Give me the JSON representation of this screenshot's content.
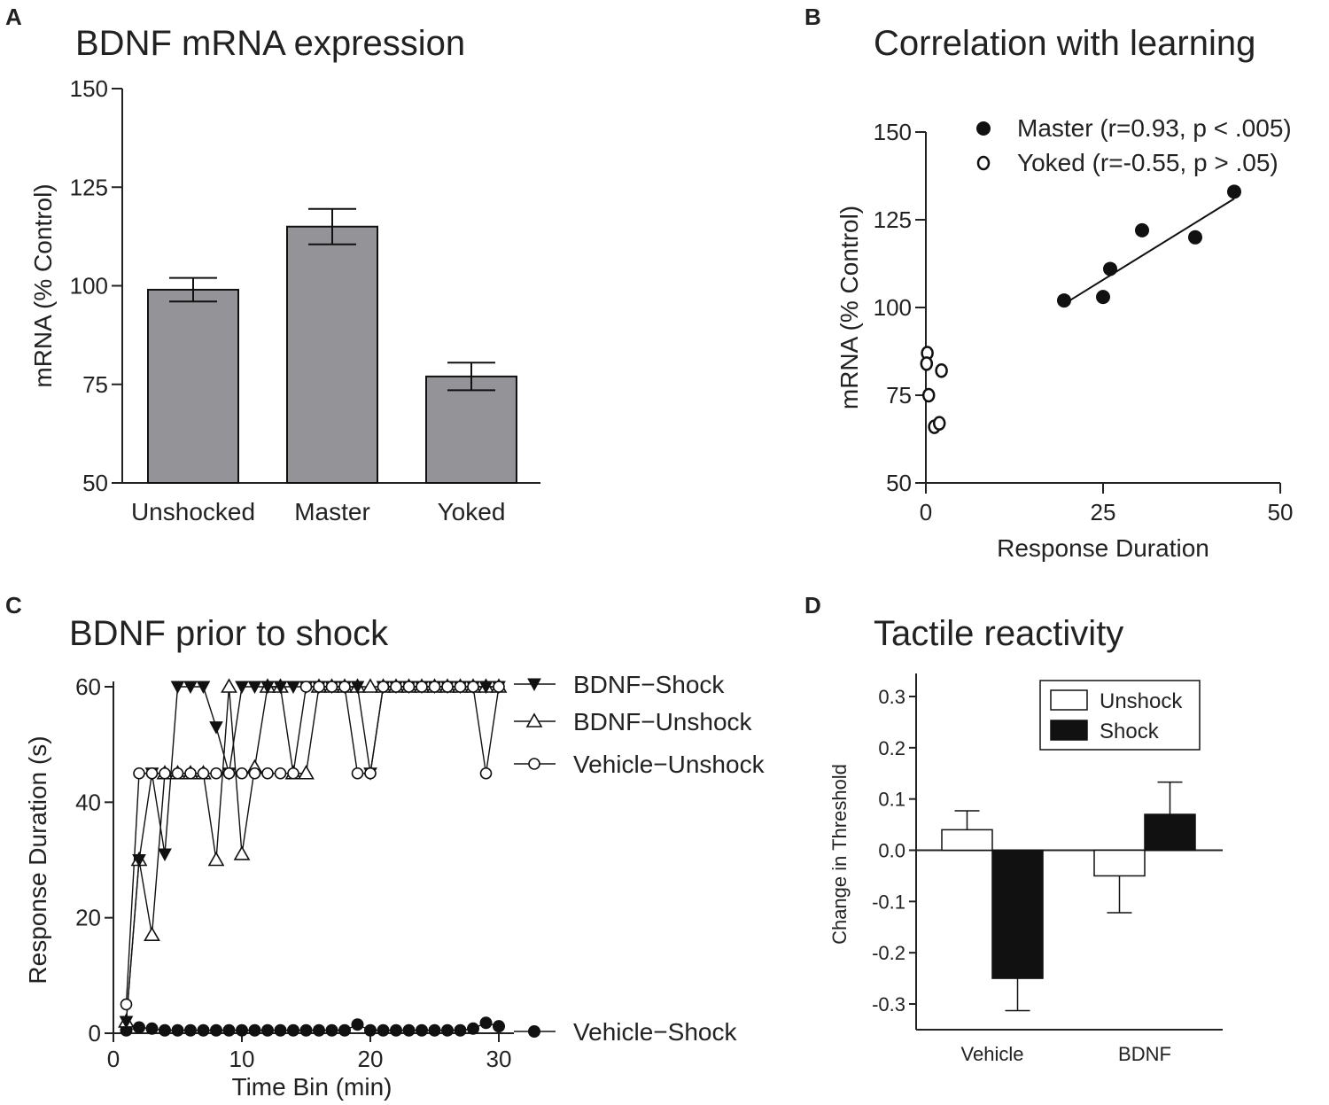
{
  "colors": {
    "bar_gray": "#939398",
    "ink": "#111111",
    "white": "#ffffff"
  },
  "chart_data": [
    {
      "id": "A",
      "type": "bar",
      "letter": "A",
      "title": "BDNF mRNA expression",
      "ylabel": "mRNA (% Control)",
      "xlabel": "",
      "ylim": [
        50,
        150
      ],
      "yticks": [
        50,
        75,
        100,
        125,
        150
      ],
      "categories": [
        "Unshocked",
        "Master",
        "Yoked"
      ],
      "values": [
        99,
        115,
        77
      ],
      "errors": [
        3,
        4.5,
        3.5
      ]
    },
    {
      "id": "B",
      "type": "scatter",
      "letter": "B",
      "title": "Correlation with learning",
      "xlabel": "Response Duration",
      "ylabel": "mRNA (% Control)",
      "xlim": [
        0,
        50
      ],
      "ylim": [
        50,
        150
      ],
      "xticks": [
        0,
        25,
        50
      ],
      "yticks": [
        50,
        75,
        100,
        125,
        150
      ],
      "series": [
        {
          "name": "Master (r=0.93, p < .005)",
          "marker": "filled",
          "points": [
            [
              19.5,
              102
            ],
            [
              25,
              103
            ],
            [
              26,
              111
            ],
            [
              30.5,
              122
            ],
            [
              38,
              120
            ],
            [
              43.5,
              133
            ]
          ],
          "fit": [
            [
              19.5,
              101
            ],
            [
              43.5,
              131
            ]
          ]
        },
        {
          "name": "Yoked (r=-0.55, p > .05)",
          "marker": "open",
          "points": [
            [
              0.2,
              87
            ],
            [
              0.1,
              84
            ],
            [
              0.4,
              75
            ],
            [
              2.2,
              82
            ],
            [
              1.2,
              66
            ],
            [
              1.9,
              67
            ]
          ]
        }
      ]
    },
    {
      "id": "C",
      "type": "line",
      "letter": "C",
      "title": "BDNF prior to shock",
      "xlabel": "Time Bin (min)",
      "ylabel": "Response Duration (s)",
      "xlim": [
        0,
        30
      ],
      "ylim": [
        0,
        60
      ],
      "xticks": [
        0,
        10,
        20,
        30
      ],
      "yticks": [
        0,
        20,
        40,
        60
      ],
      "x": [
        1,
        2,
        3,
        4,
        5,
        6,
        7,
        8,
        9,
        10,
        11,
        12,
        13,
        14,
        15,
        16,
        17,
        18,
        19,
        20,
        21,
        22,
        23,
        24,
        25,
        26,
        27,
        28,
        29,
        30
      ],
      "series": [
        {
          "name": "BDNF−Shock",
          "marker": "triangle-down-filled",
          "values": [
            2,
            30,
            45,
            31,
            60,
            60,
            60,
            53,
            45,
            60,
            60,
            60,
            60,
            60,
            60,
            60,
            60,
            60,
            60,
            45,
            60,
            60,
            60,
            60,
            60,
            60,
            60,
            60,
            60,
            60
          ]
        },
        {
          "name": "BDNF−Unshock",
          "marker": "triangle-up-open",
          "values": [
            2,
            30,
            17,
            45,
            45,
            45,
            45,
            30,
            60,
            31,
            46,
            60,
            60,
            45,
            45,
            60,
            60,
            60,
            60,
            60,
            60,
            60,
            60,
            60,
            60,
            60,
            60,
            60,
            60,
            60
          ]
        },
        {
          "name": "Vehicle−Unshock",
          "marker": "circle-open",
          "values": [
            5,
            45,
            45,
            45,
            45,
            45,
            45,
            45,
            45,
            45,
            45,
            45,
            45,
            45,
            60,
            60,
            60,
            60,
            45,
            45,
            60,
            60,
            60,
            60,
            60,
            60,
            60,
            60,
            45,
            60
          ]
        },
        {
          "name": "Vehicle−Shock",
          "marker": "circle-filled",
          "values": [
            0.5,
            1,
            0.8,
            0.5,
            0.5,
            0.5,
            0.5,
            0.5,
            0.5,
            0.5,
            0.5,
            0.5,
            0.5,
            0.5,
            0.5,
            0.5,
            0.5,
            0.5,
            1.5,
            0.5,
            0.5,
            0.5,
            0.5,
            0.5,
            0.5,
            0.5,
            0.5,
            0.8,
            1.8,
            1.2
          ]
        }
      ]
    },
    {
      "id": "D",
      "type": "bar",
      "letter": "D",
      "title": "Tactile reactivity",
      "ylabel": "Change in Threshold",
      "xlabel": "",
      "ylim": [
        -0.35,
        0.35
      ],
      "yticks": [
        -0.3,
        -0.2,
        -0.1,
        0.0,
        0.1,
        0.2,
        0.3
      ],
      "ytick_labels": [
        "-0.3",
        "-0.2",
        "-0.1",
        "0.0",
        "0.1",
        "0.2",
        "0.3"
      ],
      "categories": [
        "Vehicle",
        "BDNF"
      ],
      "series": [
        {
          "name": "Unshock",
          "fill": "white",
          "values": [
            0.04,
            -0.05
          ],
          "errors": [
            0.037,
            0.072
          ]
        },
        {
          "name": "Shock",
          "fill": "black",
          "values": [
            -0.25,
            0.07
          ],
          "errors": [
            0.063,
            0.063
          ]
        }
      ]
    }
  ]
}
